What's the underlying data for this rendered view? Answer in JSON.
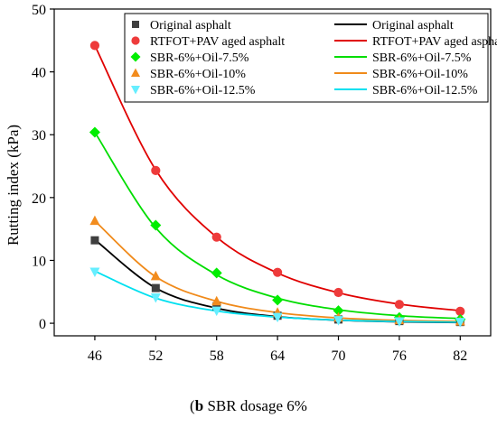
{
  "chart_data": {
    "type": "scatter",
    "ylabel": "Rutting index (kPa)",
    "xlabel": "",
    "x": [
      46,
      52,
      58,
      64,
      70,
      76,
      82
    ],
    "xticks": [
      "46",
      "52",
      "58",
      "64",
      "70",
      "76",
      "82"
    ],
    "yticks": [
      "0",
      "10",
      "20",
      "30",
      "40",
      "50"
    ],
    "xlim": [
      42,
      85
    ],
    "ylim": [
      -2,
      50
    ],
    "grid": false,
    "legend_position": "top-right",
    "series": [
      {
        "name": "Original asphalt",
        "fit_name": "Original asphalt",
        "marker": "square",
        "marker_color": "#3f3f3f",
        "line_color": "#000000",
        "values": [
          13.2,
          5.6,
          2.7,
          1.2,
          0.6,
          0.35,
          0.2
        ],
        "fit": [
          13.3,
          5.6,
          2.4,
          1.05,
          0.48,
          0.23,
          0.12
        ]
      },
      {
        "name": "RTFOT+PAV aged asphalt",
        "fit_name": "RTFOT+PAV aged asphalt",
        "marker": "circle",
        "marker_color": "#ee3b3b",
        "line_color": "#e00000",
        "values": [
          44.2,
          24.3,
          13.7,
          8.1,
          4.9,
          3.0,
          1.9
        ],
        "fit": [
          44.2,
          24.4,
          13.7,
          8.0,
          4.85,
          3.05,
          2.0
        ]
      },
      {
        "name": "SBR-6%+Oil-7.5%",
        "fit_name": "SBR-6%+Oil-7.5%",
        "marker": "diamond",
        "marker_color": "#00ee00",
        "line_color": "#00dd00",
        "values": [
          30.4,
          15.6,
          8.0,
          3.7,
          2.0,
          0.9,
          0.6
        ],
        "fit": [
          30.4,
          15.2,
          7.7,
          4.0,
          2.15,
          1.2,
          0.75
        ]
      },
      {
        "name": "SBR-6%+Oil-10%",
        "fit_name": "SBR-6%+Oil-10%",
        "marker": "triangle-up",
        "marker_color": "#f28c1e",
        "line_color": "#f08a1a",
        "values": [
          16.3,
          7.5,
          3.5,
          1.7,
          0.9,
          0.5,
          0.3
        ],
        "fit": [
          16.3,
          7.4,
          3.5,
          1.7,
          0.85,
          0.45,
          0.28
        ]
      },
      {
        "name": "SBR-6%+Oil-12.5%",
        "fit_name": "SBR-6%+Oil-12.5%",
        "marker": "triangle-down",
        "marker_color": "#66eeff",
        "line_color": "#00e0f0",
        "values": [
          8.2,
          4.1,
          2.0,
          1.0,
          0.5,
          0.3,
          0.2
        ],
        "fit": [
          8.3,
          4.0,
          1.95,
          0.98,
          0.5,
          0.28,
          0.17
        ]
      }
    ]
  },
  "caption": {
    "label": "b",
    "text": " SBR dosage 6%"
  }
}
